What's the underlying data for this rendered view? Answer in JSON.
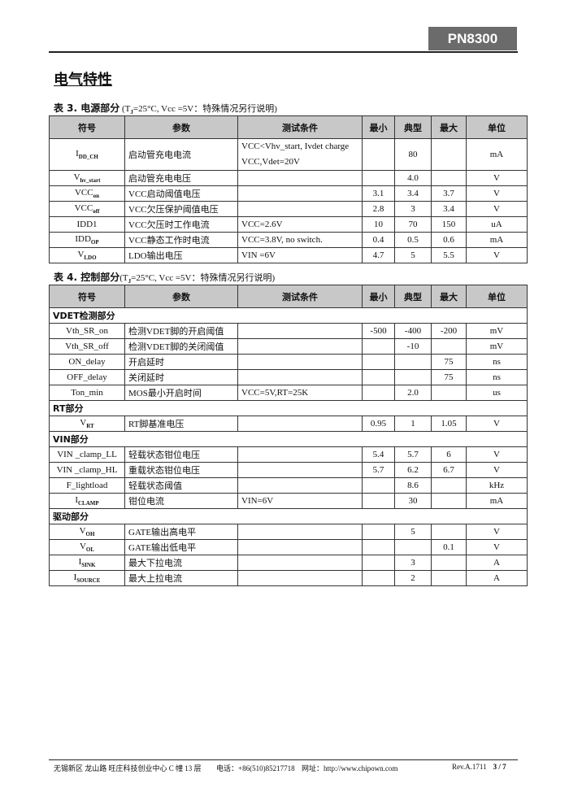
{
  "header": {
    "part_number": "PN8300"
  },
  "title": "电气特性",
  "columns": [
    "符号",
    "参数",
    "测试条件",
    "最小",
    "典型",
    "最大",
    "单位"
  ],
  "table3": {
    "caption_label": "表 3. 电源部分",
    "caption_cond": "(T",
    "caption_sub": "J",
    "caption_rest": "=25°C, Vcc =5V：特殊情况另行说明)",
    "rows": [
      {
        "sym": "I",
        "sub": "DD_CH",
        "param": "启动管充电电流",
        "cond": "VCC<Vhv_start, Ivdet charge VCC,Vdet=20V",
        "min": "",
        "typ": "80",
        "max": "",
        "unit": "mA",
        "tall": true
      },
      {
        "sym": "V",
        "sub": "hv_start",
        "param": "启动管充电电压",
        "cond": "",
        "min": "",
        "typ": "4.0",
        "max": "",
        "unit": "V"
      },
      {
        "sym": "VCC",
        "sub": "on",
        "param": "VCC启动阈值电压",
        "cond": "",
        "min": "3.1",
        "typ": "3.4",
        "max": "3.7",
        "unit": "V"
      },
      {
        "sym": "VCC",
        "sub": "off",
        "param": "VCC欠压保护阈值电压",
        "cond": "",
        "min": "2.8",
        "typ": "3",
        "max": "3.4",
        "unit": "V"
      },
      {
        "sym": "IDD1",
        "sub": "",
        "param": "VCC欠压时工作电流",
        "cond": "VCC=2.6V",
        "min": "10",
        "typ": "70",
        "max": "150",
        "unit": "uA"
      },
      {
        "sym": "IDD",
        "sub": "OP",
        "param": "VCC静态工作时电流",
        "cond": "VCC=3.8V, no switch.",
        "min": "0.4",
        "typ": "0.5",
        "max": "0.6",
        "unit": "mA"
      },
      {
        "sym": "V",
        "sub": "LDO",
        "param": "LDO输出电压",
        "cond": "VIN =6V",
        "min": "4.7",
        "typ": "5",
        "max": "5.5",
        "unit": "V"
      }
    ]
  },
  "table4": {
    "caption_label": "表 4. 控制部分",
    "caption_cond": "(T",
    "caption_sub": "J",
    "caption_rest": "=25°C, Vcc =5V：特殊情况另行说明)",
    "rows": [
      {
        "section": "VDET检测部分"
      },
      {
        "sym": "Vth_SR_on",
        "sub": "",
        "param": "检测VDET脚的开启阈值",
        "cond": "",
        "min": "-500",
        "typ": "-400",
        "max": "-200",
        "unit": "mV"
      },
      {
        "sym": "Vth_SR_off",
        "sub": "",
        "param": "检测VDET脚的关闭阈值",
        "cond": "",
        "min": "",
        "typ": "-10",
        "max": "",
        "unit": "mV"
      },
      {
        "sym": "ON_delay",
        "sub": "",
        "param": "开启延时",
        "cond": "",
        "min": "",
        "typ": "",
        "max": "75",
        "unit": "ns"
      },
      {
        "sym": "OFF_delay",
        "sub": "",
        "param": "关闭延时",
        "cond": "",
        "min": "",
        "typ": "",
        "max": "75",
        "unit": "ns"
      },
      {
        "sym": "Ton_min",
        "sub": "",
        "param": "MOS最小开启时间",
        "cond": "VCC=5V,RT=25K",
        "min": "",
        "typ": "2.0",
        "max": "",
        "unit": "us"
      },
      {
        "section": "RT部分"
      },
      {
        "sym": "V",
        "sub": "RT",
        "param": "RT脚基准电压",
        "cond": "",
        "min": "0.95",
        "typ": "1",
        "max": "1.05",
        "unit": "V"
      },
      {
        "section": "VIN部分"
      },
      {
        "sym": "VIN _clamp_LL",
        "sub": "",
        "param": "轻载状态钳位电压",
        "cond": "",
        "min": "5.4",
        "typ": "5.7",
        "max": "6",
        "unit": "V"
      },
      {
        "sym": "VIN _clamp_HL",
        "sub": "",
        "param": "重载状态钳位电压",
        "cond": "",
        "min": "5.7",
        "typ": "6.2",
        "max": "6.7",
        "unit": "V"
      },
      {
        "sym": "F_lightload",
        "sub": "",
        "param": "轻载状态阈值",
        "cond": "",
        "min": "",
        "typ": "8.6",
        "max": "",
        "unit": "kHz"
      },
      {
        "sym": "I",
        "sub": "CLAMP",
        "param": "钳位电流",
        "cond": "VIN=6V",
        "min": "",
        "typ": "30",
        "max": "",
        "unit": "mA"
      },
      {
        "section": "驱动部分"
      },
      {
        "sym": "V",
        "sub": "OH",
        "param": "GATE输出高电平",
        "cond": "",
        "min": "",
        "typ": "5",
        "max": "",
        "unit": "V"
      },
      {
        "sym": "V",
        "sub": "OL",
        "param": "GATE输出低电平",
        "cond": "",
        "min": "",
        "typ": "",
        "max": "0.1",
        "unit": "V"
      },
      {
        "sym": "I",
        "sub": "SINK",
        "param": "最大下拉电流",
        "cond": "",
        "min": "",
        "typ": "3",
        "max": "",
        "unit": "A"
      },
      {
        "sym": "I",
        "sub": "SOURCE",
        "param": "最大上拉电流",
        "cond": "",
        "min": "",
        "typ": "2",
        "max": "",
        "unit": "A"
      }
    ]
  },
  "footer": {
    "address": "无锡新区 龙山路 旺庄科技创业中心 C 幢 13 层",
    "phone": "电话：+86(510)85217718",
    "web": "网址：http://www.chipown.com",
    "rev": "Rev.A.1711",
    "page": "3 / 7"
  }
}
